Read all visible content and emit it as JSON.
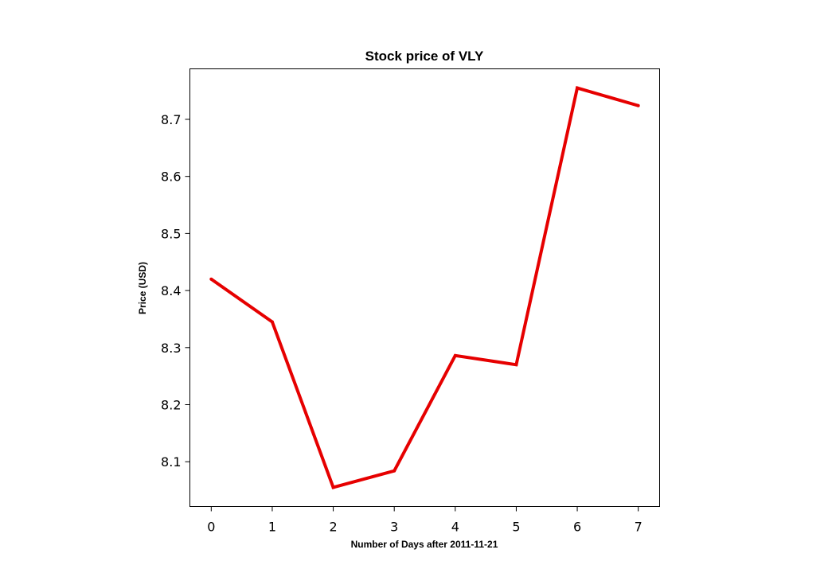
{
  "chart_data": {
    "type": "line",
    "title": "Stock price of VLY",
    "xlabel": "Number of Days after 2011-11-21",
    "ylabel": "Price (USD)",
    "x": [
      0,
      1,
      2,
      3,
      4,
      5,
      6,
      7
    ],
    "series": [
      {
        "values": [
          8.42,
          8.345,
          8.055,
          8.084,
          8.286,
          8.27,
          8.755,
          8.724
        ]
      }
    ],
    "xticks": [
      "0",
      "1",
      "2",
      "3",
      "4",
      "5",
      "6",
      "7"
    ],
    "yticks": [
      "8.1",
      "8.2",
      "8.3",
      "8.4",
      "8.5",
      "8.6",
      "8.7"
    ],
    "xlim": [
      -0.35,
      7.35
    ],
    "ylim": [
      8.0215,
      8.7885
    ],
    "grid": false,
    "line_color": "#e60000"
  }
}
